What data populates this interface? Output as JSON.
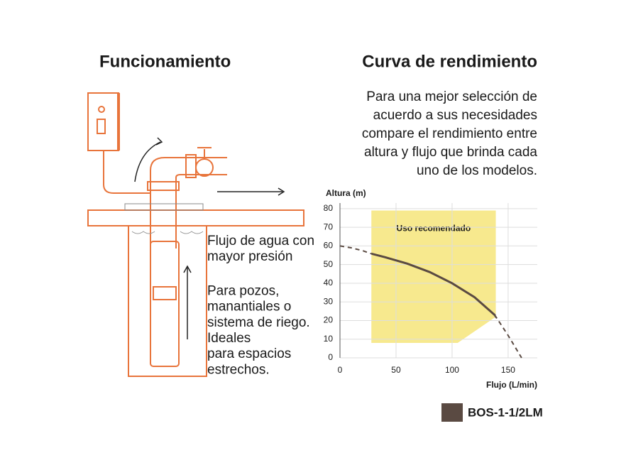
{
  "left": {
    "title": "Funcionamiento",
    "paragraphs": [
      {
        "lines": [
          "Flujo de agua con",
          "mayor presión"
        ]
      },
      {
        "lines": [
          "Para pozos,",
          "manantiales o",
          "sistema de riego.",
          "Ideales",
          "para espacios",
          "estrechos."
        ]
      }
    ]
  },
  "chart_data": {
    "type": "line",
    "title": "Curva de rendimiento",
    "subtitle_lines": [
      "Para una mejor selección de",
      "acuerdo a sus necesidades",
      "compare el rendimiento entre",
      "altura y flujo que brinda cada",
      "uno de los modelos."
    ],
    "x_label": "Flujo (L/min)",
    "y_label": "Altura (m)",
    "x": [
      0,
      10,
      20,
      27,
      40,
      60,
      80,
      100,
      120,
      138,
      150,
      162
    ],
    "series": [
      {
        "name": "BOS-1-1/2LM",
        "color": "#5a4a42",
        "values": [
          60,
          59,
          57.5,
          56,
          54,
          50.5,
          46,
          40,
          32.5,
          23,
          12,
          0
        ]
      }
    ],
    "region": {
      "label": "Uso recomendado",
      "color": "#f7e98e",
      "points": [
        [
          28,
          79
        ],
        [
          139,
          79
        ],
        [
          139,
          22
        ],
        [
          105,
          8
        ],
        [
          28,
          8
        ]
      ]
    },
    "xlim": [
      0,
      176
    ],
    "ylim": [
      0,
      83
    ],
    "xticks": [
      0,
      50,
      100,
      150
    ],
    "yticks": [
      0,
      10,
      20,
      30,
      40,
      50,
      60,
      70,
      80
    ],
    "grid": true
  }
}
